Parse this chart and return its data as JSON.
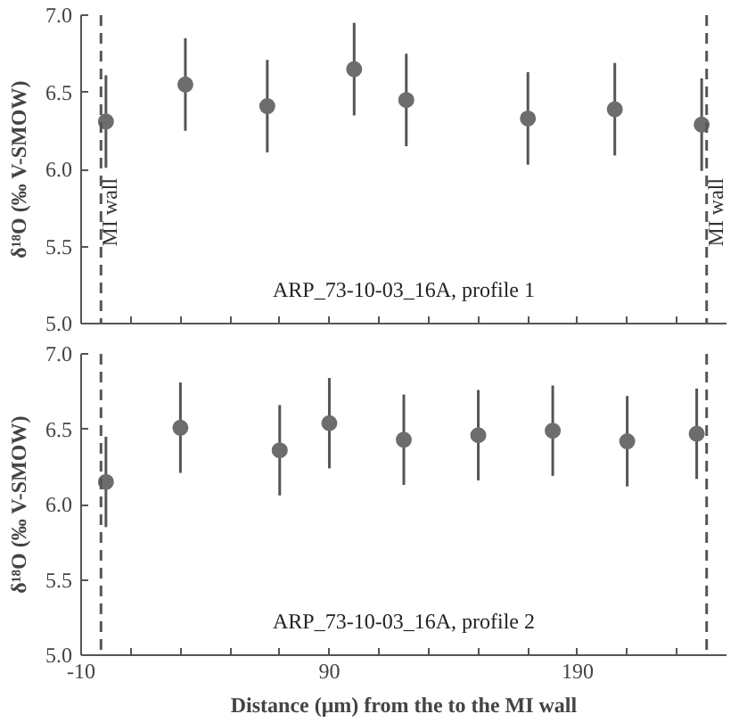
{
  "chart_data": [
    {
      "type": "scatter",
      "ylabel": "δ¹⁸O (‰ V-SMOW)",
      "annotations": [
        "ARP_73-10-03_16A, profile 1"
      ],
      "x": [
        0,
        32,
        65,
        100,
        121,
        170,
        205,
        240
      ],
      "series": [
        {
          "color": "#6d6d6d",
          "values": [
            6.31,
            6.55,
            6.41,
            6.65,
            6.45,
            6.33,
            6.39,
            6.29
          ],
          "errors": [
            0.3,
            0.3,
            0.3,
            0.3,
            0.3,
            0.3,
            0.3,
            0.3
          ]
        }
      ],
      "xlim": [
        -10,
        250
      ],
      "xticks": [
        {
          "value": -10,
          "label": null
        },
        {
          "value": 10,
          "label": null
        },
        {
          "value": 30,
          "label": null
        },
        {
          "value": 50,
          "label": null
        },
        {
          "value": 70,
          "label": null
        },
        {
          "value": 90,
          "label": null
        },
        {
          "value": 110,
          "label": null
        },
        {
          "value": 130,
          "label": null
        },
        {
          "value": 150,
          "label": null
        },
        {
          "value": 170,
          "label": null
        },
        {
          "value": 190,
          "label": null
        },
        {
          "value": 210,
          "label": null
        },
        {
          "value": 230,
          "label": null
        }
      ],
      "ylim": [
        5,
        7
      ],
      "yticks": [
        {
          "value": 5,
          "label": "5.0"
        },
        {
          "value": 5.5,
          "label": "5.5"
        },
        {
          "value": 6,
          "label": "6.0"
        },
        {
          "value": 6.5,
          "label": "6.5"
        },
        {
          "value": 7,
          "label": "7.0"
        }
      ],
      "ref_lines": [
        {
          "axis": "x",
          "value": -2,
          "label": "MI wall",
          "color": "#555555",
          "line_style": "dashed"
        },
        {
          "axis": "x",
          "value": 242,
          "label": "MI wall",
          "color": "#555555",
          "line_style": "dashed"
        }
      ],
      "tick_labels": "y",
      "grid": false,
      "marker": "circle"
    },
    {
      "type": "scatter",
      "ylabel": "δ¹⁸O (‰ V-SMOW)",
      "xlabel": "Distance (μm) from the to the MI wall",
      "annotations": [
        "ARP_73-10-03_16A, profile 2"
      ],
      "x": [
        0,
        30,
        70,
        90,
        120,
        150,
        180,
        210,
        238
      ],
      "series": [
        {
          "color": "#6d6d6d",
          "values": [
            6.15,
            6.51,
            6.36,
            6.54,
            6.43,
            6.46,
            6.49,
            6.42,
            6.47
          ],
          "errors": [
            0.3,
            0.3,
            0.3,
            0.3,
            0.3,
            0.3,
            0.3,
            0.3,
            0.3
          ]
        }
      ],
      "xlim": [
        -10,
        250
      ],
      "xticks": [
        -10,
        {
          "value": 10,
          "label": null
        },
        {
          "value": 30,
          "label": null
        },
        {
          "value": 50,
          "label": null
        },
        {
          "value": 70,
          "label": null
        },
        90,
        {
          "value": 110,
          "label": null
        },
        {
          "value": 130,
          "label": null
        },
        {
          "value": 150,
          "label": null
        },
        {
          "value": 170,
          "label": null
        },
        190,
        {
          "value": 210,
          "label": null
        },
        {
          "value": 230,
          "label": null
        }
      ],
      "ylim": [
        5,
        7
      ],
      "yticks": [
        {
          "value": 5,
          "label": "5.0"
        },
        {
          "value": 5.5,
          "label": "5.5"
        },
        {
          "value": 6,
          "label": "6.0"
        },
        {
          "value": 6.5,
          "label": "6.5"
        },
        {
          "value": 7,
          "label": "7.0"
        }
      ],
      "ref_lines": [
        {
          "axis": "x",
          "value": -2,
          "color": "#555555",
          "line_style": "dashed"
        },
        {
          "axis": "x",
          "value": 242,
          "color": "#555555",
          "line_style": "dashed"
        }
      ],
      "grid": false,
      "marker": "circle"
    }
  ]
}
